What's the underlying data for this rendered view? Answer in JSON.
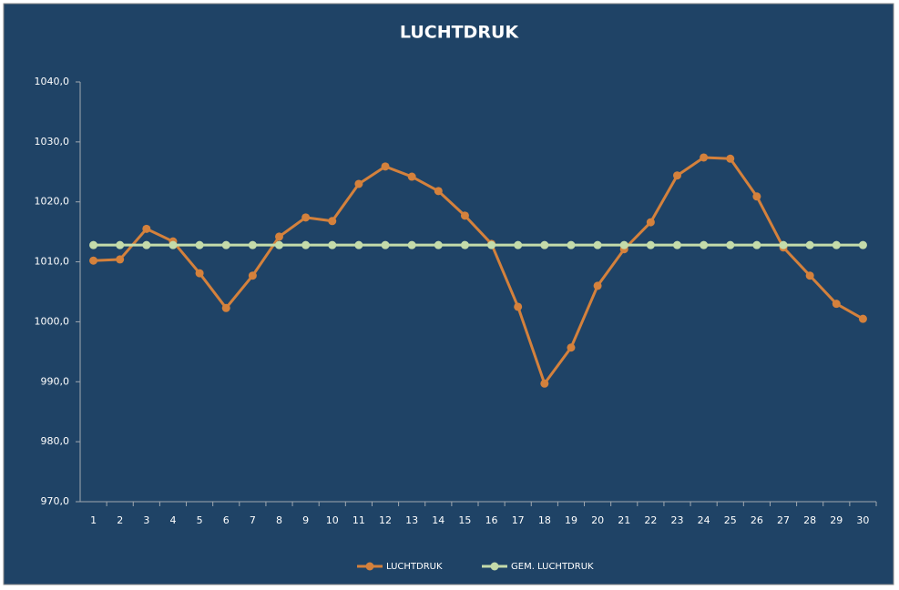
{
  "chart_data": {
    "type": "line",
    "title": "LUCHTDRUK",
    "categories": [
      "1",
      "2",
      "3",
      "4",
      "5",
      "6",
      "7",
      "8",
      "9",
      "10",
      "11",
      "12",
      "13",
      "14",
      "15",
      "16",
      "17",
      "18",
      "19",
      "20",
      "21",
      "22",
      "23",
      "24",
      "25",
      "26",
      "27",
      "28",
      "29",
      "30"
    ],
    "series": [
      {
        "name": "LUCHTDRUK",
        "color": "#d4813c",
        "values": [
          1010.2,
          1010.4,
          1015.5,
          1013.4,
          1008.1,
          1002.3,
          1007.7,
          1014.2,
          1017.4,
          1016.8,
          1023.0,
          1025.9,
          1024.2,
          1021.8,
          1017.7,
          1013.0,
          1002.5,
          989.7,
          995.7,
          1006.0,
          1012.1,
          1016.6,
          1024.4,
          1027.4,
          1027.2,
          1020.9,
          1012.4,
          1007.7,
          1003.0,
          1000.5
        ]
      },
      {
        "name": "GEM. LUCHTDRUK",
        "color": "#c4dbaa",
        "values": [
          1012.8,
          1012.8,
          1012.8,
          1012.8,
          1012.8,
          1012.8,
          1012.8,
          1012.8,
          1012.8,
          1012.8,
          1012.8,
          1012.8,
          1012.8,
          1012.8,
          1012.8,
          1012.8,
          1012.8,
          1012.8,
          1012.8,
          1012.8,
          1012.8,
          1012.8,
          1012.8,
          1012.8,
          1012.8,
          1012.8,
          1012.8,
          1012.8,
          1012.8,
          1012.8
        ]
      }
    ],
    "ylim": [
      970,
      1040
    ],
    "yticks": [
      {
        "value": 970,
        "label": "970,0"
      },
      {
        "value": 980,
        "label": "980,0"
      },
      {
        "value": 990,
        "label": "990,0"
      },
      {
        "value": 1000,
        "label": "1000,0"
      },
      {
        "value": 1010,
        "label": "1010,0"
      },
      {
        "value": 1020,
        "label": "1020,0"
      },
      {
        "value": 1030,
        "label": "1030,0"
      },
      {
        "value": 1040,
        "label": "1040,0"
      }
    ],
    "legend": "bottom",
    "grid": false
  }
}
